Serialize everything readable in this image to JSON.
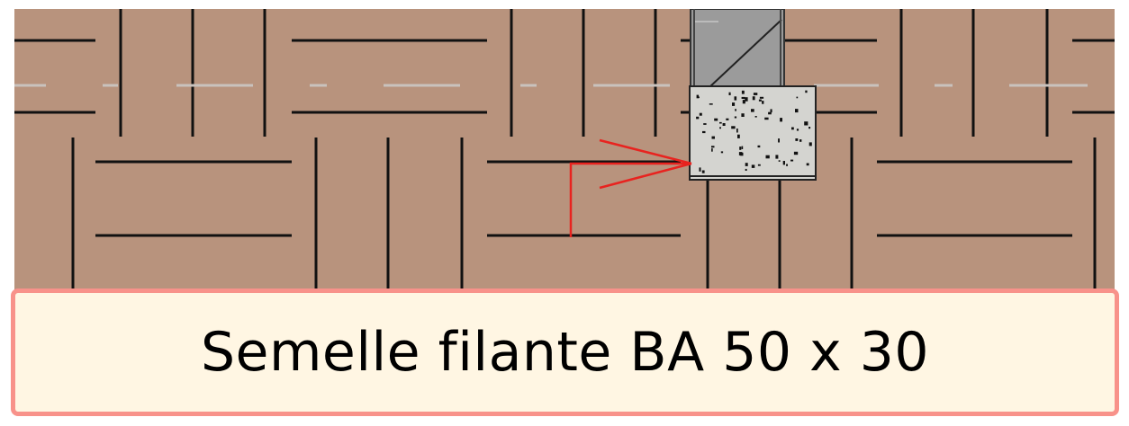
{
  "caption": "Semelle filante BA 50 x 30",
  "colors": {
    "soil": "#b8937d",
    "soil_lines": "#111111",
    "soil_dashes": "#c9c2bd",
    "footing_concrete": "#d4d4d0",
    "wall": "#9b9b9b",
    "section_arrow": "#e8231f",
    "label_background": "#fff6e3",
    "label_border": "#f8928a"
  },
  "icons": {
    "section_marker": "red-arrow-pointer"
  }
}
